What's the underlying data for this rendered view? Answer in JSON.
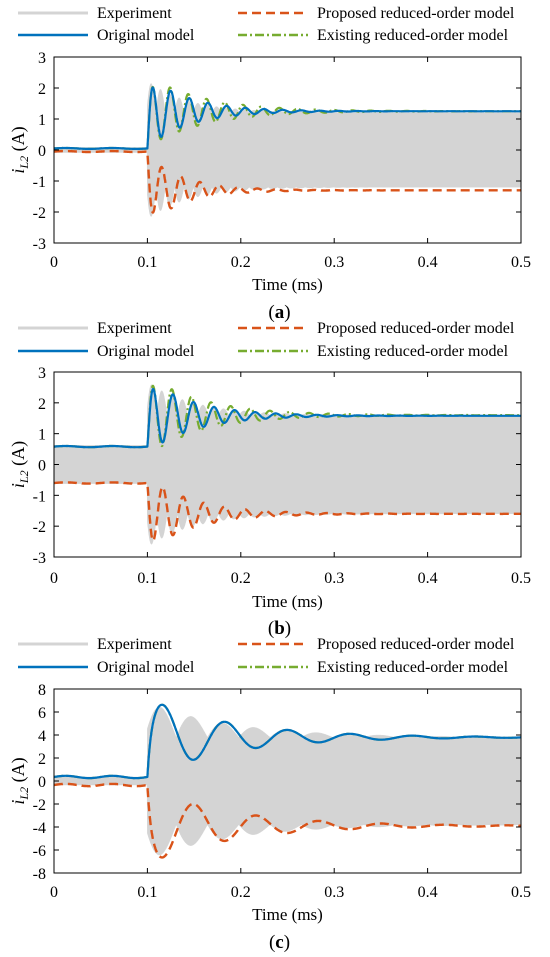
{
  "colors": {
    "experiment": "#d4d4d4",
    "original": "#0072bd",
    "proposed": "#d95319",
    "existing": "#77ac30",
    "axis": "#000000"
  },
  "legend": {
    "experiment": "Experiment",
    "original": "Original model",
    "proposed": "Proposed reduced-order model",
    "existing": "Existing reduced-order model"
  },
  "chart_data": [
    {
      "type": "line",
      "panel_label": "a",
      "xlabel": "Time (ms)",
      "ylabel_main": "i",
      "ylabel_sub": "L2",
      "ylabel_unit": " (A)",
      "xlim": [
        0,
        0.5
      ],
      "ylim": [
        -3,
        3
      ],
      "xticks": [
        "0",
        "0.1",
        "0.2",
        "0.3",
        "0.4",
        "0.5"
      ],
      "yticks": [
        "3",
        "2",
        "1",
        "0",
        "-1",
        "-2",
        "-3"
      ],
      "step_time": 0.1,
      "series": {
        "original": {
          "pre": 0.05,
          "final": 1.25,
          "overshoot": 1.15,
          "decay": 0.045,
          "period": 0.02,
          "ripple": 0.015
        },
        "existing": {
          "pre": 0.05,
          "final": 1.25,
          "overshoot": 1.15,
          "decay": 0.06,
          "period": 0.0195,
          "ripple": 0.015
        },
        "proposed": {
          "pre": -0.05,
          "final": -1.3,
          "overshoot": -1.1,
          "decay": 0.04,
          "period": 0.0205,
          "ripple": 0.015
        },
        "experiment_envelope": {
          "pre": 0.08,
          "final": 1.2
        }
      }
    },
    {
      "type": "line",
      "panel_label": "b",
      "xlabel": "Time (ms)",
      "ylabel_main": "i",
      "ylabel_sub": "L2",
      "ylabel_unit": " (A)",
      "xlim": [
        0,
        0.5
      ],
      "ylim": [
        -3,
        3
      ],
      "xticks": [
        "0",
        "0.1",
        "0.2",
        "0.3",
        "0.4",
        "0.5"
      ],
      "yticks": [
        "3",
        "2",
        "1",
        "0",
        "-1",
        "-2",
        "-3"
      ],
      "step_time": 0.1,
      "series": {
        "original": {
          "pre": 0.58,
          "final": 1.58,
          "overshoot": 1.2,
          "decay": 0.05,
          "period": 0.022,
          "ripple": 0.02
        },
        "existing": {
          "pre": 0.58,
          "final": 1.6,
          "overshoot": 1.3,
          "decay": 0.06,
          "period": 0.021,
          "ripple": 0.02
        },
        "proposed": {
          "pre": -0.6,
          "final": -1.6,
          "overshoot": -1.2,
          "decay": 0.05,
          "period": 0.022,
          "ripple": 0.02
        },
        "experiment_envelope": {
          "pre": 0.62,
          "final": 1.6
        }
      }
    },
    {
      "type": "line",
      "panel_label": "c",
      "xlabel": "Time (ms)",
      "ylabel_main": "i",
      "ylabel_sub": "L2",
      "ylabel_unit": " (A)",
      "xlim": [
        0,
        0.5
      ],
      "ylim": [
        -8,
        8
      ],
      "xticks": [
        "0",
        "0.1",
        "0.2",
        "0.3",
        "0.4",
        "0.5"
      ],
      "yticks": [
        "8",
        "6",
        "4",
        "2",
        "0",
        "-2",
        "-4",
        "-6",
        "-8"
      ],
      "step_time": 0.1,
      "series": {
        "original": {
          "pre": 0.35,
          "final": 3.8,
          "overshoot": 3.4,
          "decay": 0.09,
          "period": 0.067,
          "ripple": 0.1
        },
        "existing": {
          "pre": 0.35,
          "final": 3.8,
          "overshoot": 3.4,
          "decay": 0.09,
          "period": 0.067,
          "ripple": 0.1
        },
        "proposed": {
          "pre": -0.35,
          "final": -3.9,
          "overshoot": -3.3,
          "decay": 0.09,
          "period": 0.067,
          "ripple": 0.1
        },
        "experiment_envelope": {
          "pre": 0.35,
          "final": 3.8
        }
      }
    }
  ]
}
